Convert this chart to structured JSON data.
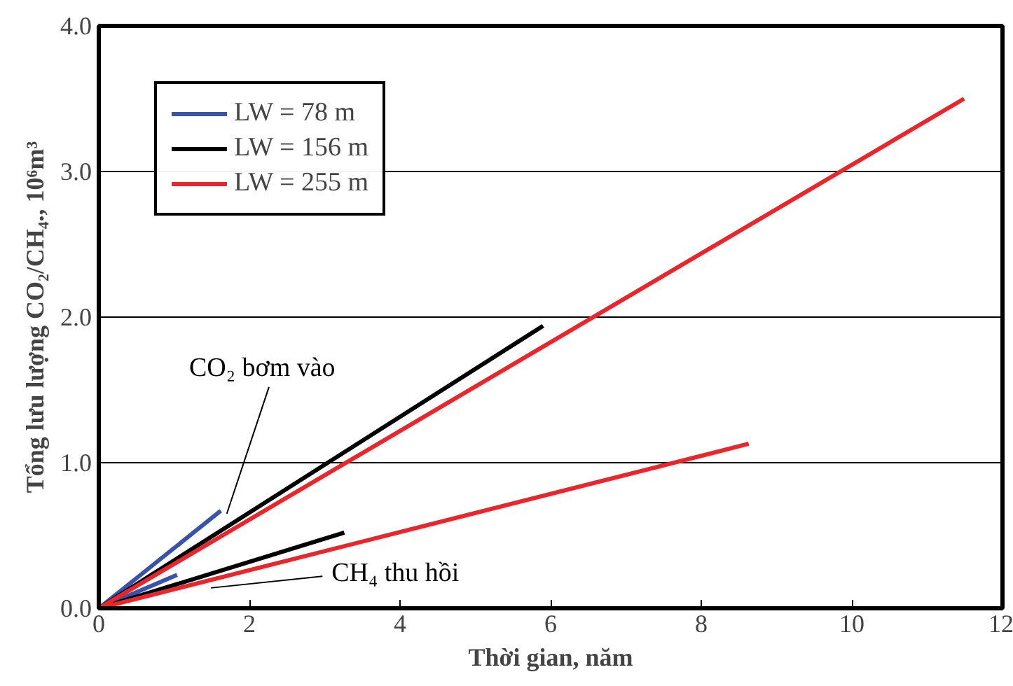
{
  "chart_data": {
    "type": "line",
    "xlabel": "Thời gian, năm",
    "ylabel": "Tổng lưu lượng CO₂/CH₄., 10⁶m³",
    "xlim": [
      0,
      12
    ],
    "ylim": [
      0,
      4
    ],
    "xticks": [
      0,
      2,
      4,
      6,
      8,
      10,
      12
    ],
    "yticks": [
      {
        "value": 0,
        "label": "0.0"
      },
      {
        "value": 1,
        "label": "1.0"
      },
      {
        "value": 2,
        "label": "2.0"
      },
      {
        "value": 3,
        "label": "3.0"
      },
      {
        "value": 4,
        "label": "4.0"
      }
    ],
    "grid": "y",
    "legend": "top left",
    "series": [
      {
        "name": "LW = 78 m",
        "color": "#3a52a8",
        "x": [
          0,
          1.62
        ],
        "values": [
          0,
          0.67
        ]
      },
      {
        "color": "#3a52a8",
        "x": [
          0,
          1.04
        ],
        "values": [
          0,
          0.23
        ]
      },
      {
        "name": "LW = 156 m",
        "color": "#000000",
        "x": [
          0,
          5.9
        ],
        "values": [
          0,
          1.94
        ]
      },
      {
        "color": "#000000",
        "x": [
          0,
          3.26
        ],
        "values": [
          0,
          0.52
        ]
      },
      {
        "name": "LW = 255 m",
        "color": "#e8262b",
        "x": [
          0,
          11.49
        ],
        "values": [
          0,
          3.5
        ]
      },
      {
        "color": "#e8262b",
        "x": [
          0,
          8.63
        ],
        "values": [
          0,
          1.13
        ]
      }
    ],
    "annotations": [
      {
        "text": "CO₂ bơm vào",
        "x": 1.7,
        "y": 0.65
      },
      {
        "text": "CH₄ thu hồi",
        "x": 1.49,
        "y": 0.14
      }
    ]
  }
}
